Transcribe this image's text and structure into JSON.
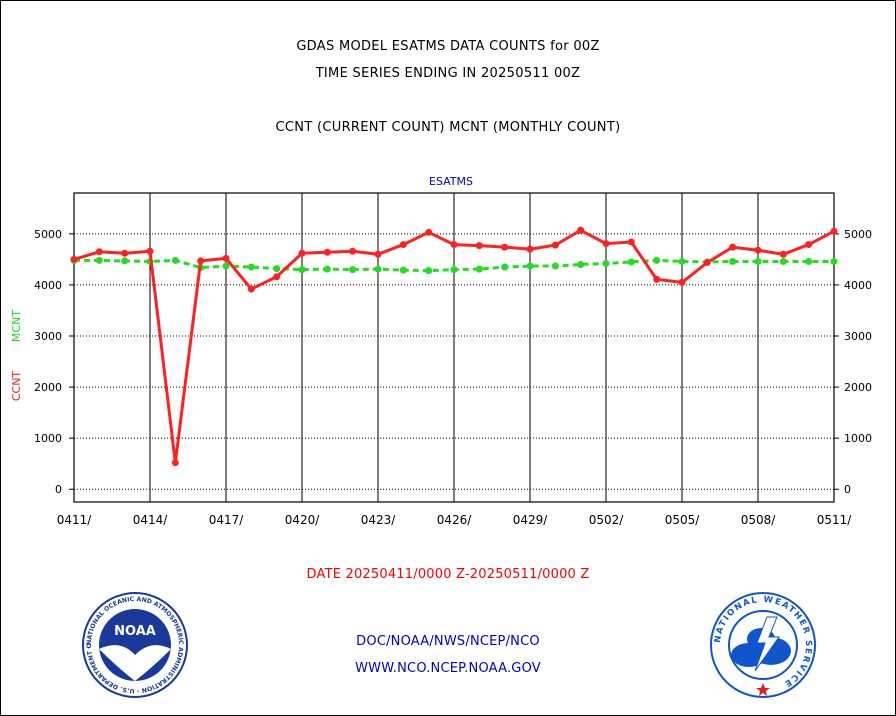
{
  "page": {
    "title_line1": "GDAS MODEL ESATMS DATA COUNTS for 00Z",
    "title_line2": "TIME SERIES ENDING IN 20250511 00Z",
    "subtitle": "CCNT (CURRENT COUNT) MCNT (MONTHLY COUNT)",
    "footer_org": "DOC/NOAA/NWS/NCEP/NCO",
    "footer_url": "WWW.NCO.NCEP.NOAA.GOV",
    "logo_left_text": "NOAA",
    "logo_left_ring": "NATIONAL OCEANIC AND ATMOSPHERIC ADMINISTRATION · U.S. DEPARTMENT OF COMMERCE",
    "logo_right_ring": "NATIONAL WEATHER SERVICE"
  },
  "colors": {
    "ccnt": "#ff2020",
    "mcnt": "#22dd22",
    "chart_title": "#0000cc",
    "footer": "#0000cc",
    "xlabel": "#ff0000",
    "noaa_blue": "#1a3a9a",
    "nws_blue": "#1155cc"
  },
  "chart_data": {
    "type": "line",
    "title": "ESATMS",
    "xlabel": "DATE 20250411/0000 Z-20250511/0000 Z",
    "ylabel_series": [
      "CCNT",
      "MCNT"
    ],
    "x_tick_labels": [
      "0411/",
      "0414/",
      "0417/",
      "0420/",
      "0423/",
      "0426/",
      "0429/",
      "0502/",
      "0505/",
      "0508/",
      "0511/"
    ],
    "y_ticks": [
      0,
      1000,
      2000,
      3000,
      4000,
      5000
    ],
    "ylim": [
      -250,
      5800
    ],
    "x_dates": [
      "0411",
      "0412",
      "0413",
      "0414",
      "0415",
      "0416",
      "0417",
      "0418",
      "0419",
      "0420",
      "0421",
      "0422",
      "0423",
      "0424",
      "0425",
      "0426",
      "0427",
      "0428",
      "0429",
      "0430",
      "0501",
      "0502",
      "0503",
      "0504",
      "0505",
      "0506",
      "0507",
      "0508",
      "0509",
      "0510",
      "0511"
    ],
    "grid": true,
    "series": [
      {
        "name": "CCNT",
        "values": [
          4500,
          4650,
          4620,
          4660,
          520,
          4470,
          4520,
          3920,
          4160,
          4620,
          4640,
          4660,
          4600,
          4790,
          5030,
          4790,
          4770,
          4740,
          4700,
          4780,
          5070,
          4810,
          4840,
          4110,
          4050,
          4440,
          4740,
          4680,
          4600,
          4790,
          5050
        ]
      },
      {
        "name": "MCNT",
        "values": [
          4480,
          4480,
          4470,
          4460,
          4480,
          4340,
          4370,
          4350,
          4320,
          4300,
          4310,
          4300,
          4310,
          4290,
          4280,
          4300,
          4310,
          4350,
          4370,
          4370,
          4400,
          4420,
          4450,
          4480,
          4460,
          4450,
          4460,
          4460,
          4460,
          4460,
          4460
        ]
      }
    ]
  }
}
